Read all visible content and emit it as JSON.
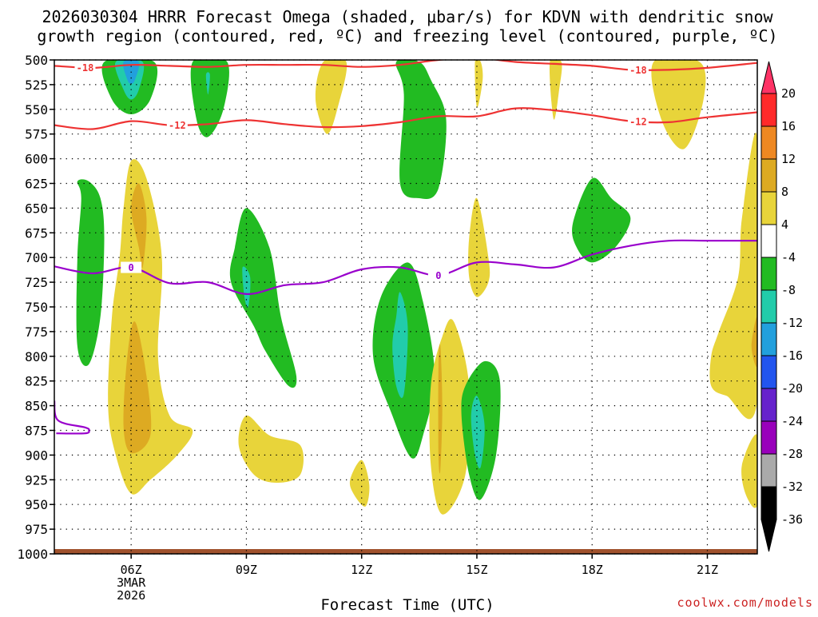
{
  "chart_data": {
    "type": "contour",
    "title_line1": "2026030304 HRRR Forecast Omega (shaded, μbar/s) for KDVN with dendritic snow",
    "title_line2": "growth region (contoured, red, ºC) and freezing level (contoured, purple, ºC)",
    "xlabel": "Forecast Time (UTC)",
    "credit": "coolwx.com/models",
    "xlim": [
      4,
      22.3
    ],
    "ylim": [
      1000,
      500
    ],
    "x_ticks": [
      {
        "hour": 6,
        "label": "06Z",
        "sub1": "3MAR",
        "sub2": "2026"
      },
      {
        "hour": 9,
        "label": "09Z",
        "sub1": "",
        "sub2": ""
      },
      {
        "hour": 12,
        "label": "12Z",
        "sub1": "",
        "sub2": ""
      },
      {
        "hour": 15,
        "label": "15Z",
        "sub1": "",
        "sub2": ""
      },
      {
        "hour": 18,
        "label": "18Z",
        "sub1": "",
        "sub2": ""
      },
      {
        "hour": 21,
        "label": "21Z",
        "sub1": "",
        "sub2": ""
      }
    ],
    "y_ticks": [
      "500",
      "525",
      "550",
      "575",
      "600",
      "625",
      "650",
      "675",
      "700",
      "725",
      "750",
      "775",
      "800",
      "825",
      "850",
      "875",
      "900",
      "925",
      "950",
      "975",
      "1000"
    ],
    "colorbar": {
      "levels": [
        "20",
        "16",
        "12",
        "8",
        "4",
        "-4",
        "-8",
        "-12",
        "-16",
        "-20",
        "-24",
        "-28",
        "-32",
        "-36"
      ],
      "colors": [
        "#ff3366",
        "#ff2a2a",
        "#ee8822",
        "#ddaa22",
        "#e8d43a",
        "#ffffff",
        "#22bb22",
        "#22ccaa",
        "#22a0dd",
        "#2255ee",
        "#6622cc",
        "#9900bb",
        "#aaaaaa",
        "#000000"
      ]
    },
    "isotherms": [
      {
        "name": "-18",
        "color": "#ee3333",
        "label": "-18",
        "points": [
          [
            4,
            506
          ],
          [
            5,
            508
          ],
          [
            6,
            505
          ],
          [
            7,
            506
          ],
          [
            8,
            507
          ],
          [
            9,
            505
          ],
          [
            10,
            505
          ],
          [
            11,
            505
          ],
          [
            12,
            507
          ],
          [
            13,
            505
          ],
          [
            14,
            500
          ],
          [
            15,
            498
          ],
          [
            16,
            502
          ],
          [
            17,
            504
          ],
          [
            18,
            506
          ],
          [
            19,
            510
          ],
          [
            20,
            510
          ],
          [
            21,
            508
          ],
          [
            22.3,
            503
          ]
        ]
      },
      {
        "name": "-12",
        "color": "#ee3333",
        "label": "-12",
        "points": [
          [
            4,
            566
          ],
          [
            5,
            570
          ],
          [
            6,
            562
          ],
          [
            7,
            566
          ],
          [
            8,
            565
          ],
          [
            9,
            561
          ],
          [
            10,
            565
          ],
          [
            11,
            568
          ],
          [
            12,
            567
          ],
          [
            13,
            563
          ],
          [
            14,
            557
          ],
          [
            15,
            557
          ],
          [
            16,
            549
          ],
          [
            17,
            551
          ],
          [
            18,
            556
          ],
          [
            19,
            562
          ],
          [
            20,
            563
          ],
          [
            21,
            558
          ],
          [
            22.3,
            553
          ]
        ]
      },
      {
        "name": "0",
        "color": "#9900cc",
        "label": "0",
        "points": [
          [
            4,
            709
          ],
          [
            5,
            716
          ],
          [
            6,
            710
          ],
          [
            7,
            726
          ],
          [
            8,
            725
          ],
          [
            9,
            737
          ],
          [
            10,
            728
          ],
          [
            11,
            725
          ],
          [
            12,
            712
          ],
          [
            13,
            710
          ],
          [
            14,
            718
          ],
          [
            15,
            705
          ],
          [
            16,
            707
          ],
          [
            17,
            710
          ],
          [
            18,
            697
          ],
          [
            19,
            688
          ],
          [
            20,
            683
          ],
          [
            21,
            683
          ],
          [
            22.3,
            683
          ]
        ]
      }
    ],
    "omega_fields": [
      {
        "value": -6,
        "color": "#22bb22",
        "points": [
          [
            5.3,
            502
          ],
          [
            5.5,
            540
          ],
          [
            6,
            555
          ],
          [
            6.5,
            540
          ],
          [
            6.6,
            502
          ]
        ]
      },
      {
        "value": -10,
        "color": "#22ccaa",
        "points": [
          [
            5.6,
            502
          ],
          [
            5.8,
            530
          ],
          [
            6,
            540
          ],
          [
            6.2,
            530
          ],
          [
            6.3,
            502
          ]
        ]
      },
      {
        "value": -14,
        "color": "#22a0dd",
        "points": [
          [
            5.8,
            502
          ],
          [
            5.9,
            520
          ],
          [
            6.0,
            524
          ],
          [
            6.1,
            520
          ],
          [
            6.2,
            502
          ]
        ]
      },
      {
        "value": -6,
        "color": "#22bb22",
        "points": [
          [
            7.6,
            502
          ],
          [
            7.7,
            560
          ],
          [
            8,
            578
          ],
          [
            8.4,
            550
          ],
          [
            8.5,
            502
          ]
        ]
      },
      {
        "value": -10,
        "color": "#22ccaa",
        "points": [
          [
            7.95,
            515
          ],
          [
            8,
            535
          ],
          [
            8.05,
            515
          ]
        ]
      },
      {
        "value": 6,
        "color": "#e8d43a",
        "points": [
          [
            11,
            502
          ],
          [
            10.8,
            540
          ],
          [
            11.1,
            575
          ],
          [
            11.4,
            545
          ],
          [
            11.6,
            502
          ]
        ]
      },
      {
        "value": 6,
        "color": "#e8d43a",
        "points": [
          [
            16.9,
            502
          ],
          [
            17,
            560
          ],
          [
            17.15,
            528
          ],
          [
            17.2,
            502
          ]
        ]
      },
      {
        "value": 6,
        "color": "#e8d43a",
        "points": [
          [
            19.6,
            502
          ],
          [
            19.8,
            560
          ],
          [
            20.4,
            590
          ],
          [
            20.9,
            540
          ],
          [
            20.8,
            502
          ]
        ]
      },
      {
        "value": 6,
        "color": "#e8d43a",
        "points": [
          [
            14.95,
            502
          ],
          [
            15,
            548
          ],
          [
            15.15,
            520
          ],
          [
            15.1,
            502
          ]
        ]
      },
      {
        "value": -6,
        "color": "#22bb22",
        "points": [
          [
            12.9,
            502
          ],
          [
            13.1,
            535
          ],
          [
            13,
            625
          ],
          [
            13.5,
            640
          ],
          [
            14,
            630
          ],
          [
            14.2,
            560
          ],
          [
            13.8,
            520
          ],
          [
            13.5,
            502
          ]
        ]
      },
      {
        "value": -6,
        "color": "#22bb22",
        "points": [
          [
            4.6,
            623
          ],
          [
            4.7,
            640
          ],
          [
            4.6,
            700
          ],
          [
            4.6,
            790
          ],
          [
            4.9,
            808
          ],
          [
            5.2,
            760
          ],
          [
            5.3,
            680
          ],
          [
            5.2,
            640
          ],
          [
            4.9,
            623
          ]
        ]
      },
      {
        "value": 6,
        "color": "#e8d43a",
        "points": [
          [
            5.8,
            650
          ],
          [
            6,
            602
          ],
          [
            6.4,
            620
          ],
          [
            6.8,
            700
          ],
          [
            6.7,
            800
          ],
          [
            7,
            860
          ],
          [
            7.6,
            875
          ],
          [
            7.2,
            900
          ],
          [
            6.5,
            925
          ],
          [
            6,
            939
          ],
          [
            5.6,
            900
          ],
          [
            5.4,
            850
          ],
          [
            5.5,
            760
          ],
          [
            5.7,
            700
          ]
        ]
      },
      {
        "value": 10,
        "color": "#ddaa22",
        "points": [
          [
            6,
            650
          ],
          [
            6.2,
            625
          ],
          [
            6.4,
            660
          ],
          [
            6.3,
            710
          ],
          [
            6.2,
            690
          ]
        ]
      },
      {
        "value": 10,
        "color": "#ddaa22",
        "points": [
          [
            5.9,
            800
          ],
          [
            6.1,
            765
          ],
          [
            6.4,
            820
          ],
          [
            6.5,
            880
          ],
          [
            6,
            898
          ],
          [
            5.8,
            870
          ]
        ]
      },
      {
        "value": -6,
        "color": "#22bb22",
        "points": [
          [
            9,
            650
          ],
          [
            9.6,
            690
          ],
          [
            9.9,
            760
          ],
          [
            10.3,
            820
          ],
          [
            10.1,
            830
          ],
          [
            9.5,
            795
          ],
          [
            9.2,
            770
          ],
          [
            8.6,
            725
          ],
          [
            8.7,
            690
          ]
        ]
      },
      {
        "value": -10,
        "color": "#22ccaa",
        "points": [
          [
            8.9,
            710
          ],
          [
            9.1,
            720
          ],
          [
            9.05,
            750
          ],
          [
            8.95,
            740
          ]
        ]
      },
      {
        "value": 6,
        "color": "#e8d43a",
        "points": [
          [
            9,
            860
          ],
          [
            9.6,
            880
          ],
          [
            10.4,
            890
          ],
          [
            10.4,
            920
          ],
          [
            9.8,
            928
          ],
          [
            9.2,
            920
          ],
          [
            8.8,
            890
          ]
        ]
      },
      {
        "value": 6,
        "color": "#e8d43a",
        "points": [
          [
            11.7,
            925
          ],
          [
            12,
            905
          ],
          [
            12.2,
            930
          ],
          [
            12.1,
            952
          ],
          [
            11.8,
            940
          ]
        ]
      },
      {
        "value": -6,
        "color": "#22bb22",
        "points": [
          [
            13.2,
            705
          ],
          [
            13.6,
            745
          ],
          [
            13.9,
            820
          ],
          [
            13.6,
            880
          ],
          [
            13.3,
            903
          ],
          [
            12.8,
            860
          ],
          [
            12.3,
            800
          ],
          [
            12.5,
            740
          ]
        ]
      },
      {
        "value": -10,
        "color": "#22ccaa",
        "points": [
          [
            12.9,
            760
          ],
          [
            13,
            735
          ],
          [
            13.2,
            770
          ],
          [
            13.1,
            838
          ],
          [
            12.9,
            830
          ],
          [
            12.8,
            790
          ]
        ]
      },
      {
        "value": 6,
        "color": "#e8d43a",
        "points": [
          [
            14.1,
            780
          ],
          [
            14.4,
            765
          ],
          [
            14.8,
            830
          ],
          [
            14.7,
            920
          ],
          [
            14.1,
            960
          ],
          [
            13.8,
            910
          ],
          [
            13.8,
            830
          ]
        ]
      },
      {
        "value": 10,
        "color": "#ddaa22",
        "points": [
          [
            14,
            810
          ],
          [
            14.05,
            790
          ],
          [
            14.1,
            850
          ],
          [
            14.05,
            915
          ],
          [
            14,
            900
          ]
        ]
      },
      {
        "value": -6,
        "color": "#22bb22",
        "points": [
          [
            14.7,
            830
          ],
          [
            15.2,
            805
          ],
          [
            15.6,
            825
          ],
          [
            15.5,
            900
          ],
          [
            15.1,
            945
          ],
          [
            14.8,
            920
          ],
          [
            14.6,
            860
          ]
        ]
      },
      {
        "value": -10,
        "color": "#22ccaa",
        "points": [
          [
            14.85,
            860
          ],
          [
            15.0,
            840
          ],
          [
            15.2,
            870
          ],
          [
            15.1,
            912
          ],
          [
            14.95,
            900
          ]
        ]
      },
      {
        "value": 6,
        "color": "#e8d43a",
        "points": [
          [
            15,
            640
          ],
          [
            15.3,
            700
          ],
          [
            15.3,
            725
          ],
          [
            15,
            740
          ],
          [
            14.8,
            720
          ],
          [
            14.8,
            680
          ]
        ]
      },
      {
        "value": -6,
        "color": "#22bb22",
        "points": [
          [
            17.5,
            665
          ],
          [
            18,
            620
          ],
          [
            18.5,
            640
          ],
          [
            19,
            660
          ],
          [
            18.6,
            690
          ],
          [
            18,
            705
          ],
          [
            17.6,
            690
          ]
        ]
      },
      {
        "value": 6,
        "color": "#e8d43a",
        "points": [
          [
            22.3,
            580
          ],
          [
            21.9,
            660
          ],
          [
            21.8,
            720
          ],
          [
            21.3,
            775
          ],
          [
            21.1,
            800
          ],
          [
            21.1,
            830
          ],
          [
            21.5,
            840
          ],
          [
            22.3,
            845
          ]
        ]
      },
      {
        "value": 10,
        "color": "#ddaa22",
        "points": [
          [
            22.3,
            760
          ],
          [
            22.15,
            790
          ],
          [
            22.3,
            810
          ]
        ]
      },
      {
        "value": 6,
        "color": "#e8d43a",
        "points": [
          [
            22.3,
            880
          ],
          [
            21.9,
            910
          ],
          [
            22,
            940
          ],
          [
            22.3,
            950
          ]
        ]
      },
      {
        "value": 0,
        "color": "#9900cc",
        "line": true,
        "points": [
          [
            4,
            845
          ],
          [
            4.1,
            865
          ],
          [
            4.8,
            872
          ],
          [
            4.9,
            875
          ],
          [
            4.8,
            878
          ],
          [
            4.05,
            878
          ]
        ]
      }
    ]
  }
}
